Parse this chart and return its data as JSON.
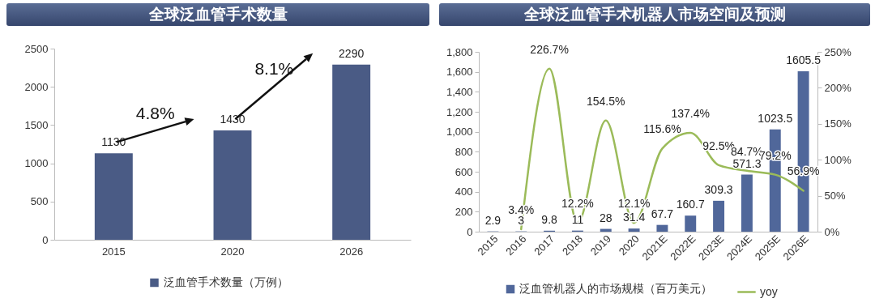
{
  "chart_data": [
    {
      "type": "bar",
      "title": "全球泛血管手术数量",
      "categories": [
        "2015",
        "2020",
        "2026"
      ],
      "series": [
        {
          "name": "泛血管手术数量（万例）",
          "color": "#4a5b85",
          "values": [
            1130,
            1430,
            2290
          ]
        }
      ],
      "ylim": [
        0,
        2500
      ],
      "yticks": [
        0,
        500,
        1000,
        1500,
        2000,
        2500
      ],
      "data_labels": true,
      "legend": "bottom",
      "annotations": [
        "4.8%",
        "8.1%"
      ]
    },
    {
      "type": "bar",
      "title": "全球泛血管手术机器人市场空间及预测",
      "categories": [
        "2015",
        "2016",
        "2017",
        "2018",
        "2019",
        "2020",
        "2021E",
        "2022E",
        "2023E",
        "2024E",
        "2025E",
        "2026E"
      ],
      "series": [
        {
          "name": "泛血管机器人的市场规模（百万美元）",
          "type": "bar",
          "color": "#50679a",
          "values": [
            2.9,
            3,
            9.8,
            11,
            28,
            31.4,
            67.7,
            160.7,
            309.3,
            571.3,
            1023.5,
            1605.5
          ]
        },
        {
          "name": "yoy",
          "type": "line",
          "axis": "y2",
          "color": "#9bbb59",
          "values": [
            null,
            3.4,
            226.7,
            12.2,
            154.5,
            12.1,
            115.6,
            137.4,
            92.5,
            84.7,
            79.2,
            56.9
          ],
          "value_labels": [
            null,
            "3.4%",
            "226.7%",
            "12.2%",
            "154.5%",
            "12.1%",
            "115.6%",
            "137.4%",
            "92.5%",
            "84.7%",
            "79.2%",
            "56.9%"
          ]
        }
      ],
      "ylim": [
        0,
        1800
      ],
      "yticks": [
        0,
        {
          "value": 200,
          "label": "200"
        },
        {
          "value": 400,
          "label": "400"
        },
        {
          "value": 600,
          "label": "600"
        },
        {
          "value": 800,
          "label": "800"
        },
        {
          "value": 1000,
          "label": "1,000"
        },
        {
          "value": 1200,
          "label": "1,200"
        },
        {
          "value": 1400,
          "label": "1,400"
        },
        {
          "value": 1600,
          "label": "1,600"
        },
        {
          "value": 1800,
          "label": "1,800"
        }
      ],
      "y2lim": [
        0,
        250
      ],
      "y2ticks": [
        {
          "value": 0,
          "label": "0%"
        },
        {
          "value": 50,
          "label": "50%"
        },
        {
          "value": 100,
          "label": "100%"
        },
        {
          "value": 150,
          "label": "150%"
        },
        {
          "value": 200,
          "label": "200%"
        },
        {
          "value": 250,
          "label": "250%"
        }
      ],
      "data_labels": true,
      "legend": "bottom"
    }
  ]
}
